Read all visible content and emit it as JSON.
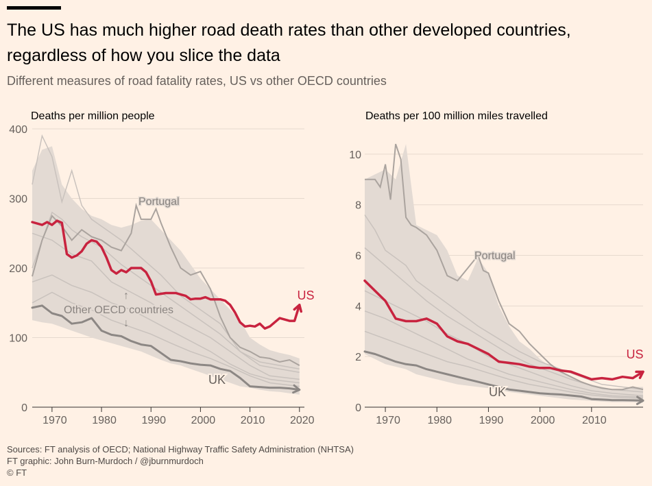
{
  "header": {
    "title": "The US has much higher road death rates than other developed countries, regardless of how you slice the data",
    "subtitle": "Different measures of road fatality rates, US vs other OECD countries"
  },
  "footer": {
    "sources": "Sources: FT analysis of OECD; National Highway Traffic Safety Administration (NHTSA)",
    "graphic": "FT graphic: John Burn-Murdoch / @jburnmurdoch",
    "copyright": "© FT"
  },
  "colors": {
    "us": "#c8233f",
    "uk": "#8c8784",
    "others": "#c9c2bd",
    "band": "#e3dad3",
    "portugal": "#aaa39e",
    "background": "#fff1e5"
  },
  "chart_data": [
    {
      "type": "line",
      "title": "Deaths per million people",
      "xlim": [
        1966,
        2021
      ],
      "ylim": [
        0,
        400
      ],
      "xticks": [
        1970,
        1980,
        1990,
        2000,
        2010,
        2020
      ],
      "yticks": [
        0,
        100,
        200,
        300,
        400
      ],
      "grid": true,
      "annotations": [
        {
          "text": "Portugal"
        },
        {
          "text": "Other OECD countries"
        },
        {
          "text": "↑"
        },
        {
          "text": "↓"
        }
      ],
      "band": {
        "x": [
          1966,
          1968,
          1970,
          1972,
          1974,
          1976,
          1978,
          1980,
          1982,
          1984,
          1986,
          1988,
          1990,
          1992,
          1994,
          1996,
          1998,
          2000,
          2002,
          2004,
          2006,
          2008,
          2010,
          2012,
          2014,
          2016,
          2018,
          2020
        ],
        "upper": [
          340,
          370,
          375,
          320,
          300,
          285,
          275,
          270,
          262,
          258,
          262,
          268,
          270,
          255,
          240,
          225,
          205,
          185,
          170,
          155,
          140,
          125,
          100,
          90,
          82,
          78,
          75,
          70
        ],
        "lower": [
          125,
          122,
          120,
          115,
          110,
          105,
          100,
          96,
          92,
          88,
          84,
          80,
          74,
          68,
          63,
          60,
          55,
          50,
          45,
          40,
          35,
          30,
          28,
          25,
          23,
          22,
          20,
          18
        ]
      },
      "series": [
        {
          "name": "US",
          "x": [
            1966,
            1968,
            1969,
            1970,
            1971,
            1972,
            1973,
            1974,
            1975,
            1976,
            1977,
            1978,
            1979,
            1980,
            1981,
            1982,
            1983,
            1984,
            1985,
            1986,
            1987,
            1988,
            1989,
            1990,
            1991,
            1992,
            1993,
            1994,
            1995,
            1996,
            1997,
            1998,
            1999,
            2000,
            2001,
            2002,
            2003,
            2004,
            2005,
            2006,
            2007,
            2008,
            2009,
            2010,
            2011,
            2012,
            2013,
            2014,
            2015,
            2016,
            2017,
            2018,
            2019,
            2020
          ],
          "values": [
            266,
            262,
            266,
            262,
            268,
            265,
            220,
            215,
            218,
            224,
            235,
            240,
            238,
            230,
            215,
            197,
            192,
            197,
            194,
            200,
            200,
            200,
            194,
            181,
            162,
            163,
            164,
            164,
            164,
            162,
            160,
            155,
            156,
            156,
            158,
            155,
            155,
            155,
            153,
            147,
            136,
            122,
            116,
            117,
            116,
            120,
            113,
            116,
            122,
            128,
            126,
            124,
            124,
            147
          ]
        },
        {
          "name": "UK",
          "x": [
            1966,
            1968,
            1970,
            1972,
            1974,
            1976,
            1978,
            1980,
            1982,
            1984,
            1986,
            1988,
            1990,
            1992,
            1994,
            1996,
            1998,
            2000,
            2002,
            2004,
            2006,
            2008,
            2010,
            2012,
            2014,
            2016,
            2018,
            2020
          ],
          "values": [
            143,
            146,
            135,
            131,
            120,
            122,
            128,
            110,
            104,
            102,
            95,
            90,
            88,
            78,
            68,
            66,
            63,
            61,
            60,
            55,
            52,
            42,
            30,
            29,
            28,
            28,
            27,
            25
          ]
        },
        {
          "name": "Portugal",
          "x": [
            1966,
            1968,
            1970,
            1972,
            1974,
            1976,
            1978,
            1980,
            1982,
            1984,
            1986,
            1987,
            1988,
            1990,
            1991,
            1992,
            1994,
            1996,
            1998,
            2000,
            2002,
            2004,
            2006,
            2008,
            2010,
            2012,
            2014,
            2016,
            2018,
            2020
          ],
          "values": [
            188,
            240,
            275,
            260,
            240,
            255,
            245,
            240,
            230,
            225,
            250,
            290,
            270,
            270,
            285,
            265,
            230,
            200,
            190,
            195,
            170,
            130,
            100,
            86,
            80,
            72,
            70,
            65,
            68,
            60
          ]
        },
        {
          "name": "",
          "x": [
            1966,
            1968,
            1970,
            1972,
            1974,
            1976,
            1978,
            1980,
            1984,
            1988,
            1992,
            1996,
            2000,
            2004,
            2008,
            2012,
            2016,
            2020
          ],
          "values": [
            320,
            390,
            360,
            295,
            340,
            290,
            270,
            260,
            240,
            215,
            190,
            160,
            140,
            120,
            80,
            65,
            60,
            55
          ]
        },
        {
          "name": "",
          "x": [
            1966,
            1970,
            1972,
            1974,
            1976,
            1980,
            1984,
            1988,
            1992,
            1996,
            2000,
            2004,
            2008,
            2012,
            2016,
            2020
          ],
          "values": [
            200,
            280,
            270,
            255,
            245,
            230,
            205,
            185,
            165,
            145,
            125,
            105,
            80,
            60,
            55,
            50
          ]
        },
        {
          "name": "",
          "x": [
            1966,
            1970,
            1974,
            1978,
            1982,
            1986,
            1990,
            1994,
            1998,
            2002,
            2006,
            2010,
            2014,
            2020
          ],
          "values": [
            250,
            240,
            220,
            210,
            180,
            165,
            150,
            130,
            115,
            100,
            80,
            60,
            45,
            40
          ]
        },
        {
          "name": "",
          "x": [
            1966,
            1970,
            1974,
            1978,
            1982,
            1986,
            1990,
            1994,
            1998,
            2002,
            2006,
            2010,
            2014,
            2020
          ],
          "values": [
            180,
            190,
            175,
            165,
            150,
            140,
            125,
            110,
            95,
            80,
            62,
            48,
            40,
            35
          ]
        },
        {
          "name": "",
          "x": [
            1966,
            1970,
            1974,
            1978,
            1982,
            1986,
            1990,
            1994,
            1998,
            2002,
            2006,
            2010,
            2014,
            2020
          ],
          "values": [
            150,
            165,
            150,
            140,
            125,
            115,
            105,
            92,
            80,
            70,
            58,
            45,
            35,
            30
          ]
        }
      ]
    },
    {
      "type": "line",
      "title": "Deaths per 100 million miles travelled",
      "xlim": [
        1966,
        2020
      ],
      "ylim": [
        0,
        11
      ],
      "xticks": [
        1970,
        1980,
        1990,
        2000,
        2010
      ],
      "yticks": [
        0,
        2,
        4,
        6,
        8,
        10
      ],
      "grid": true,
      "annotations": [
        {
          "text": "Portugal"
        }
      ],
      "band": {
        "x": [
          1966,
          1968,
          1970,
          1972,
          1974,
          1976,
          1978,
          1980,
          1982,
          1984,
          1986,
          1988,
          1990,
          1992,
          1994,
          1996,
          1998,
          2000,
          2002,
          2004,
          2006,
          2008,
          2010,
          2012,
          2014,
          2016,
          2018,
          2020
        ],
        "upper": [
          9.0,
          9.2,
          9.4,
          9.0,
          10.4,
          7.2,
          7.0,
          6.8,
          6.2,
          5.2,
          5.0,
          5.9,
          5.3,
          4.0,
          3.2,
          2.6,
          2.3,
          1.9,
          1.6,
          1.4,
          1.2,
          1.0,
          0.9,
          0.8,
          0.7,
          0.7,
          0.8,
          0.8
        ],
        "lower": [
          2.1,
          1.9,
          1.7,
          1.6,
          1.5,
          1.3,
          1.2,
          1.1,
          1.0,
          0.9,
          0.85,
          0.8,
          0.75,
          0.7,
          0.6,
          0.55,
          0.5,
          0.45,
          0.4,
          0.35,
          0.3,
          0.28,
          0.25,
          0.22,
          0.2,
          0.2,
          0.2,
          0.18
        ]
      },
      "series": [
        {
          "name": "US",
          "x": [
            1966,
            1968,
            1970,
            1972,
            1974,
            1976,
            1978,
            1980,
            1982,
            1984,
            1986,
            1988,
            1990,
            1992,
            1994,
            1996,
            1998,
            2000,
            2002,
            2004,
            2006,
            2008,
            2010,
            2012,
            2014,
            2016,
            2018,
            2020
          ],
          "values": [
            5.0,
            4.6,
            4.2,
            3.5,
            3.4,
            3.4,
            3.5,
            3.3,
            2.8,
            2.6,
            2.5,
            2.3,
            2.1,
            1.8,
            1.75,
            1.7,
            1.6,
            1.55,
            1.55,
            1.45,
            1.4,
            1.25,
            1.1,
            1.15,
            1.1,
            1.2,
            1.15,
            1.4
          ]
        },
        {
          "name": "UK",
          "x": [
            1966,
            1968,
            1970,
            1972,
            1974,
            1976,
            1978,
            1980,
            1982,
            1984,
            1986,
            1988,
            1990,
            1992,
            1994,
            1996,
            1998,
            2000,
            2002,
            2004,
            2006,
            2008,
            2010,
            2012,
            2014,
            2016,
            2018,
            2020
          ],
          "values": [
            2.2,
            2.1,
            1.95,
            1.8,
            1.7,
            1.65,
            1.5,
            1.4,
            1.3,
            1.2,
            1.1,
            1.0,
            0.9,
            0.8,
            0.7,
            0.65,
            0.6,
            0.55,
            0.52,
            0.5,
            0.46,
            0.42,
            0.32,
            0.3,
            0.28,
            0.28,
            0.27,
            0.26
          ]
        },
        {
          "name": "Portugal",
          "x": [
            1966,
            1968,
            1969,
            1970,
            1971,
            1972,
            1973,
            1974,
            1975,
            1976,
            1978,
            1980,
            1982,
            1984,
            1986,
            1988,
            1989,
            1990,
            1992,
            1994,
            1996,
            1998,
            2000,
            2002,
            2004,
            2006,
            2008,
            2010,
            2012,
            2014,
            2016,
            2018,
            2020
          ],
          "values": [
            9.0,
            9.0,
            8.7,
            9.6,
            8.2,
            10.4,
            9.8,
            7.5,
            7.2,
            7.1,
            6.8,
            6.2,
            5.2,
            5.0,
            5.5,
            6.0,
            5.4,
            5.3,
            4.2,
            3.3,
            3.0,
            2.5,
            2.1,
            1.7,
            1.4,
            1.2,
            1.0,
            0.85,
            0.75,
            0.7,
            0.7,
            0.8,
            0.7
          ]
        },
        {
          "name": "",
          "x": [
            1966,
            1968,
            1970,
            1972,
            1974,
            1976,
            1980,
            1984,
            1988,
            1992,
            1996,
            2000,
            2004,
            2008,
            2012,
            2016,
            2020
          ],
          "values": [
            7.6,
            7.0,
            6.2,
            5.9,
            5.6,
            5.0,
            4.4,
            3.8,
            3.2,
            2.7,
            2.2,
            1.8,
            1.5,
            1.2,
            0.9,
            0.8,
            0.7
          ]
        },
        {
          "name": "",
          "x": [
            1966,
            1970,
            1974,
            1978,
            1982,
            1986,
            1990,
            1994,
            1998,
            2002,
            2006,
            2010,
            2014,
            2020
          ],
          "values": [
            6.3,
            5.6,
            4.9,
            4.2,
            3.6,
            3.1,
            2.6,
            2.1,
            1.7,
            1.4,
            1.1,
            0.85,
            0.7,
            0.6
          ]
        },
        {
          "name": "",
          "x": [
            1966,
            1970,
            1974,
            1978,
            1982,
            1986,
            1990,
            1994,
            1998,
            2002,
            2006,
            2010,
            2014,
            2020
          ],
          "values": [
            4.6,
            4.2,
            3.8,
            3.4,
            2.9,
            2.5,
            2.0,
            1.7,
            1.4,
            1.1,
            0.85,
            0.65,
            0.55,
            0.45
          ]
        },
        {
          "name": "",
          "x": [
            1966,
            1970,
            1974,
            1978,
            1982,
            1986,
            1990,
            1994,
            1998,
            2002,
            2006,
            2010,
            2014,
            2020
          ],
          "values": [
            3.8,
            3.5,
            3.1,
            2.7,
            2.3,
            1.9,
            1.6,
            1.3,
            1.1,
            0.9,
            0.7,
            0.55,
            0.45,
            0.4
          ]
        },
        {
          "name": "",
          "x": [
            1966,
            1970,
            1974,
            1978,
            1982,
            1986,
            1990,
            1994,
            1998,
            2002,
            2006,
            2010,
            2014,
            2020
          ],
          "values": [
            3.0,
            2.7,
            2.4,
            2.1,
            1.8,
            1.6,
            1.35,
            1.1,
            0.9,
            0.75,
            0.6,
            0.48,
            0.4,
            0.35
          ]
        }
      ]
    }
  ]
}
